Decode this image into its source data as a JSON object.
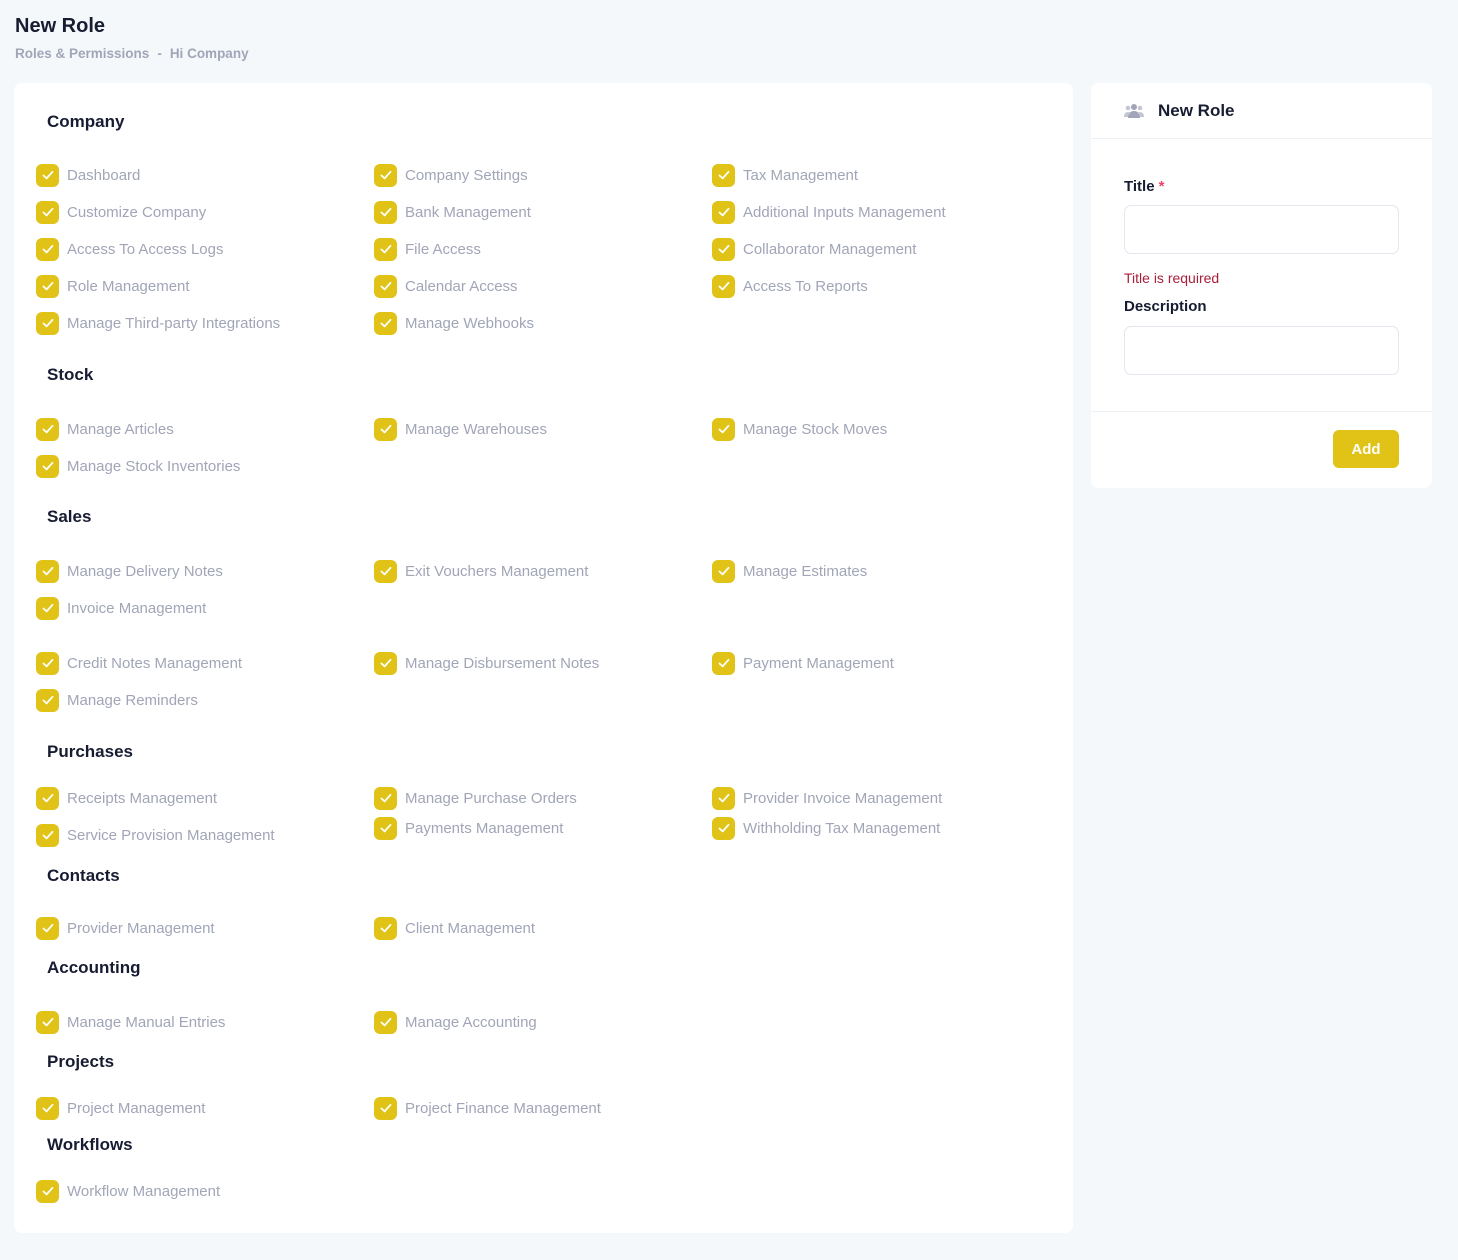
{
  "header": {
    "title": "New Role",
    "breadcrumb": [
      "Roles & Permissions",
      "Hi Company"
    ],
    "breadcrumb_sep": "-"
  },
  "sections": [
    {
      "title": "Company",
      "items": [
        "Dashboard",
        "Company Settings",
        "Tax Management",
        "Customize Company",
        "Bank Management",
        "Additional Inputs Management",
        "Access To Access Logs",
        "File Access",
        "Collaborator Management",
        "Role Management",
        "Calendar Access",
        "Access To Reports",
        "Manage Third-party Integrations",
        "Manage Webhooks"
      ]
    },
    {
      "title": "Stock",
      "items": [
        "Manage Articles",
        "Manage Warehouses",
        "Manage Stock Moves",
        "Manage Stock Inventories"
      ]
    },
    {
      "title": "Sales",
      "items": [
        "Manage Delivery Notes",
        "Exit Vouchers Management",
        "Manage Estimates",
        "Invoice Management",
        "Credit Notes Management",
        "Manage Disbursement Notes",
        "Payment Management",
        "Manage Reminders"
      ]
    },
    {
      "title": "Purchases",
      "items": [
        "Receipts Management",
        "Manage Purchase Orders",
        "Provider Invoice Management",
        "Service Provision Management",
        "Payments Management",
        "Withholding Tax Management"
      ]
    },
    {
      "title": "Contacts",
      "items": [
        "Provider Management",
        "Client Management"
      ]
    },
    {
      "title": "Accounting",
      "items": [
        "Manage Manual Entries",
        "Manage Accounting"
      ]
    },
    {
      "title": "Projects",
      "items": [
        "Project Management",
        "Project Finance Management"
      ]
    },
    {
      "title": "Workflows",
      "items": [
        "Workflow Management"
      ]
    }
  ],
  "form": {
    "title": "New Role",
    "title_label": "Title",
    "required_mark": "*",
    "title_value": "",
    "title_error": "Title is required",
    "description_label": "Description",
    "description_value": "",
    "submit_label": "Add"
  },
  "colors": {
    "accent": "#e0c316",
    "error": "#a8203b",
    "required": "#f1416c"
  }
}
